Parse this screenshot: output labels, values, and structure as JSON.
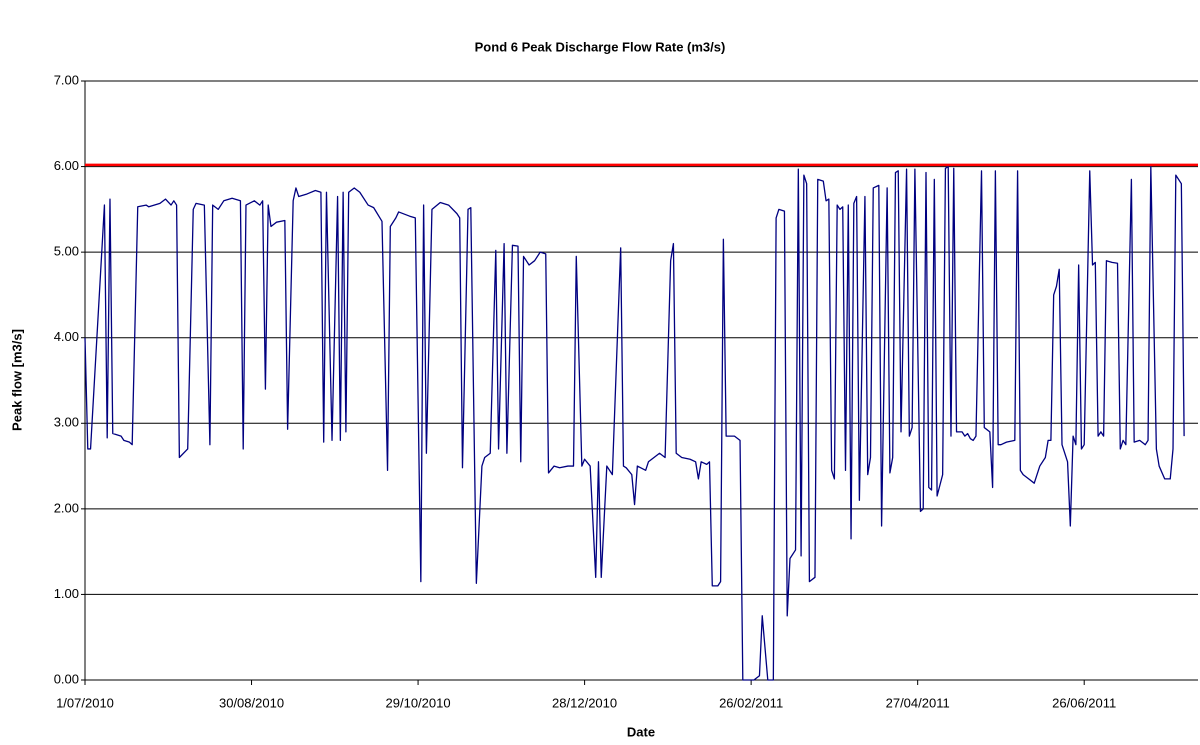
{
  "chart_data": {
    "type": "line",
    "title": "Pond 6 Peak Discharge Flow Rate (m3/s)",
    "x_label": "Date",
    "y_label": "Peak flow [m3/s]",
    "color": "#000080",
    "grid": true,
    "reference_line": {
      "value": 6.02,
      "color": "#ff0000"
    },
    "xlim": [
      "2010-07-01",
      "2011-08-06"
    ],
    "xticks": [
      {
        "value": "2010-07-01",
        "label": "1/07/2010"
      },
      {
        "value": "2010-08-30",
        "label": "30/08/2010"
      },
      {
        "value": "2010-10-29",
        "label": "29/10/2010"
      },
      {
        "value": "2010-12-28",
        "label": "28/12/2010"
      },
      {
        "value": "2011-02-26",
        "label": "26/02/2011"
      },
      {
        "value": "2011-04-27",
        "label": "27/04/2011"
      },
      {
        "value": "2011-06-26",
        "label": "26/06/2011"
      }
    ],
    "ylim": [
      0,
      7
    ],
    "yticks": [
      {
        "value": 0,
        "label": "0.00"
      },
      {
        "value": 1,
        "label": "1.00"
      },
      {
        "value": 2,
        "label": "2.00"
      },
      {
        "value": 3,
        "label": "3.00"
      },
      {
        "value": 4,
        "label": "4.00"
      },
      {
        "value": 5,
        "label": "5.00"
      },
      {
        "value": 6,
        "label": "6.00"
      },
      {
        "value": 7,
        "label": "7.00"
      }
    ],
    "x": [
      "2010-07-01",
      "2010-07-02",
      "2010-07-03",
      "2010-07-08",
      "2010-07-09",
      "2010-07-10",
      "2010-07-11",
      "2010-07-14",
      "2010-07-15",
      "2010-07-17",
      "2010-07-18",
      "2010-07-20",
      "2010-07-23",
      "2010-07-24",
      "2010-07-28",
      "2010-07-30",
      "2010-08-01",
      "2010-08-02",
      "2010-08-03",
      "2010-08-04",
      "2010-08-07",
      "2010-08-09",
      "2010-08-10",
      "2010-08-13",
      "2010-08-15",
      "2010-08-16",
      "2010-08-18",
      "2010-08-20",
      "2010-08-23",
      "2010-08-26",
      "2010-08-27",
      "2010-08-28",
      "2010-08-31",
      "2010-09-02",
      "2010-09-03",
      "2010-09-04",
      "2010-09-05",
      "2010-09-06",
      "2010-09-08",
      "2010-09-11",
      "2010-09-12",
      "2010-09-14",
      "2010-09-15",
      "2010-09-16",
      "2010-09-19",
      "2010-09-22",
      "2010-09-24",
      "2010-09-25",
      "2010-09-26",
      "2010-09-28",
      "2010-09-30",
      "2010-10-01",
      "2010-10-02",
      "2010-10-03",
      "2010-10-04",
      "2010-10-06",
      "2010-10-08",
      "2010-10-11",
      "2010-10-13",
      "2010-10-16",
      "2010-10-18",
      "2010-10-19",
      "2010-10-21",
      "2010-10-22",
      "2010-10-26",
      "2010-10-28",
      "2010-10-30",
      "2010-10-31",
      "2010-11-01",
      "2010-11-03",
      "2010-11-06",
      "2010-11-09",
      "2010-11-12",
      "2010-11-13",
      "2010-11-14",
      "2010-11-16",
      "2010-11-17",
      "2010-11-19",
      "2010-11-21",
      "2010-11-22",
      "2010-11-24",
      "2010-11-26",
      "2010-11-27",
      "2010-11-29",
      "2010-11-30",
      "2010-12-02",
      "2010-12-04",
      "2010-12-05",
      "2010-12-06",
      "2010-12-08",
      "2010-12-10",
      "2010-12-12",
      "2010-12-14",
      "2010-12-15",
      "2010-12-17",
      "2010-12-19",
      "2010-12-22",
      "2010-12-24",
      "2010-12-25",
      "2010-12-27",
      "2010-12-28",
      "2010-12-30",
      "2011-01-01",
      "2011-01-02",
      "2011-01-03",
      "2011-01-05",
      "2011-01-07",
      "2011-01-10",
      "2011-01-11",
      "2011-01-12",
      "2011-01-14",
      "2011-01-15",
      "2011-01-16",
      "2011-01-19",
      "2011-01-20",
      "2011-01-22",
      "2011-01-24",
      "2011-01-26",
      "2011-01-28",
      "2011-01-29",
      "2011-01-30",
      "2011-02-01",
      "2011-02-04",
      "2011-02-06",
      "2011-02-07",
      "2011-02-08",
      "2011-02-10",
      "2011-02-11",
      "2011-02-12",
      "2011-02-14",
      "2011-02-15",
      "2011-02-16",
      "2011-02-17",
      "2011-02-20",
      "2011-02-22",
      "2011-02-23",
      "2011-02-25",
      "2011-02-27",
      "2011-03-01",
      "2011-03-02",
      "2011-03-04",
      "2011-03-06",
      "2011-03-07",
      "2011-03-08",
      "2011-03-10",
      "2011-03-11",
      "2011-03-12",
      "2011-03-14",
      "2011-03-15",
      "2011-03-16",
      "2011-03-17",
      "2011-03-18",
      "2011-03-19",
      "2011-03-21",
      "2011-03-22",
      "2011-03-24",
      "2011-03-25",
      "2011-03-26",
      "2011-03-27",
      "2011-03-28",
      "2011-03-29",
      "2011-03-30",
      "2011-03-31",
      "2011-04-01",
      "2011-04-02",
      "2011-04-03",
      "2011-04-04",
      "2011-04-05",
      "2011-04-06",
      "2011-04-08",
      "2011-04-09",
      "2011-04-10",
      "2011-04-11",
      "2011-04-13",
      "2011-04-14",
      "2011-04-16",
      "2011-04-17",
      "2011-04-18",
      "2011-04-19",
      "2011-04-20",
      "2011-04-21",
      "2011-04-23",
      "2011-04-24",
      "2011-04-25",
      "2011-04-26",
      "2011-04-28",
      "2011-04-29",
      "2011-04-30",
      "2011-05-01",
      "2011-05-02",
      "2011-05-03",
      "2011-05-04",
      "2011-05-06",
      "2011-05-07",
      "2011-05-08",
      "2011-05-09",
      "2011-05-10",
      "2011-05-11",
      "2011-05-13",
      "2011-05-14",
      "2011-05-15",
      "2011-05-16",
      "2011-05-17",
      "2011-05-18",
      "2011-05-20",
      "2011-05-21",
      "2011-05-23",
      "2011-05-24",
      "2011-05-25",
      "2011-05-26",
      "2011-05-27",
      "2011-05-29",
      "2011-06-01",
      "2011-06-02",
      "2011-06-03",
      "2011-06-04",
      "2011-06-06",
      "2011-06-08",
      "2011-06-10",
      "2011-06-12",
      "2011-06-13",
      "2011-06-14",
      "2011-06-15",
      "2011-06-16",
      "2011-06-17",
      "2011-06-18",
      "2011-06-20",
      "2011-06-21",
      "2011-06-22",
      "2011-06-23",
      "2011-06-24",
      "2011-06-25",
      "2011-06-26",
      "2011-06-28",
      "2011-06-29",
      "2011-06-30",
      "2011-07-01",
      "2011-07-02",
      "2011-07-03",
      "2011-07-04",
      "2011-07-06",
      "2011-07-08",
      "2011-07-09",
      "2011-07-10",
      "2011-07-11",
      "2011-07-13",
      "2011-07-14",
      "2011-07-16",
      "2011-07-18",
      "2011-07-19",
      "2011-07-20",
      "2011-07-22",
      "2011-07-23",
      "2011-07-25",
      "2011-07-27",
      "2011-07-28",
      "2011-07-29",
      "2011-07-31",
      "2011-08-01"
    ],
    "values": [
      4.0,
      2.7,
      2.7,
      5.55,
      2.83,
      5.62,
      2.88,
      2.85,
      2.8,
      2.78,
      2.75,
      5.53,
      5.55,
      5.53,
      5.57,
      5.62,
      5.55,
      5.6,
      5.55,
      2.6,
      2.7,
      5.5,
      5.57,
      5.55,
      2.75,
      5.55,
      5.5,
      5.6,
      5.63,
      5.6,
      2.7,
      5.55,
      5.6,
      5.55,
      5.6,
      3.4,
      5.55,
      5.3,
      5.35,
      5.37,
      2.93,
      5.6,
      5.75,
      5.65,
      5.68,
      5.72,
      5.7,
      2.78,
      5.7,
      2.8,
      5.65,
      2.8,
      5.7,
      2.9,
      5.7,
      5.75,
      5.7,
      5.55,
      5.52,
      5.36,
      2.45,
      5.3,
      5.4,
      5.47,
      5.42,
      5.4,
      1.15,
      5.55,
      2.65,
      5.5,
      5.58,
      5.55,
      5.45,
      5.4,
      2.48,
      5.5,
      5.52,
      1.13,
      2.5,
      2.6,
      2.65,
      5.02,
      2.7,
      5.1,
      2.65,
      5.08,
      5.07,
      2.55,
      4.95,
      4.85,
      4.9,
      5.0,
      4.98,
      2.42,
      2.5,
      2.48,
      2.5,
      2.5,
      4.95,
      2.5,
      2.58,
      2.5,
      1.2,
      2.55,
      1.2,
      2.5,
      2.4,
      5.05,
      2.5,
      2.48,
      2.4,
      2.05,
      2.5,
      2.45,
      2.55,
      2.6,
      2.65,
      2.6,
      4.9,
      5.1,
      2.65,
      2.6,
      2.58,
      2.55,
      2.35,
      2.55,
      2.52,
      2.55,
      1.1,
      1.1,
      1.15,
      5.15,
      2.85,
      2.85,
      2.8,
      0,
      0,
      0,
      0.05,
      0.75,
      0,
      0,
      5.4,
      5.5,
      5.48,
      0.75,
      1.42,
      1.52,
      5.97,
      1.45,
      5.9,
      5.8,
      1.15,
      1.2,
      5.85,
      5.83,
      5.6,
      5.62,
      2.45,
      2.35,
      5.55,
      5.5,
      5.53,
      2.45,
      5.55,
      1.65,
      5.57,
      5.65,
      2.1,
      5.65,
      2.4,
      2.6,
      5.75,
      5.78,
      1.8,
      5.75,
      2.42,
      2.6,
      5.93,
      5.95,
      2.9,
      5.97,
      2.85,
      2.95,
      5.97,
      1.97,
      2.0,
      5.93,
      2.25,
      2.22,
      5.85,
      2.15,
      2.4,
      5.98,
      6.0,
      2.85,
      5.98,
      2.9,
      2.9,
      2.85,
      2.88,
      2.82,
      2.8,
      2.85,
      5.95,
      2.95,
      2.9,
      2.25,
      5.95,
      2.75,
      2.75,
      2.78,
      2.8,
      5.95,
      2.45,
      2.4,
      2.35,
      2.3,
      2.5,
      2.6,
      2.8,
      2.8,
      4.5,
      4.6,
      4.8,
      2.75,
      2.55,
      1.8,
      2.85,
      2.75,
      4.85,
      2.7,
      2.75,
      5.95,
      4.85,
      4.88,
      2.85,
      2.9,
      2.85,
      4.9,
      4.88,
      4.87,
      2.7,
      2.8,
      2.75,
      5.85,
      2.78,
      2.8,
      2.75,
      2.8,
      6.0,
      2.7,
      2.5,
      2.35,
      2.35,
      2.7,
      5.9,
      5.8,
      2.85
    ]
  }
}
